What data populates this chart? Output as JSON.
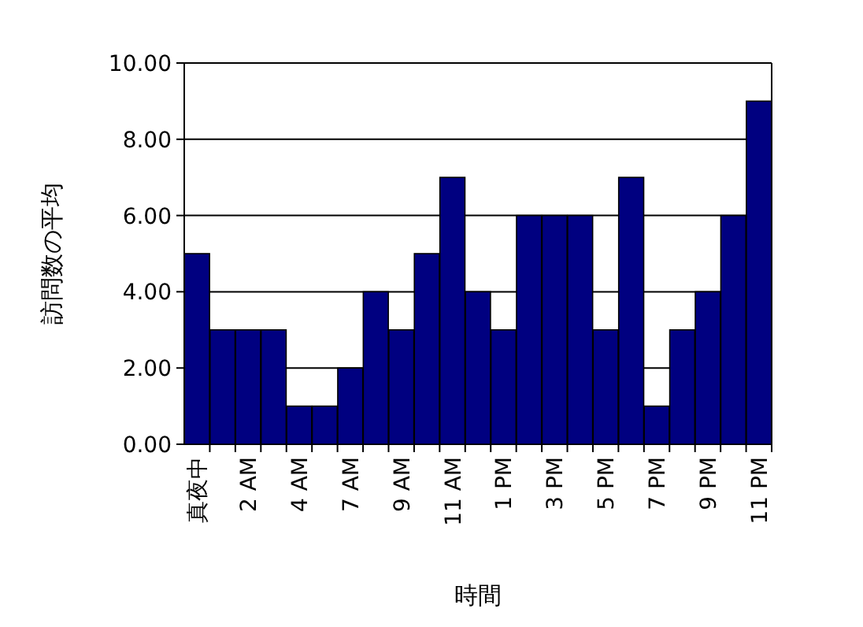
{
  "chart_data": {
    "type": "bar",
    "xlabel": "時間",
    "ylabel": "訪問数の平均",
    "categories": [
      "真夜中",
      null,
      "2 AM",
      null,
      "4 AM",
      null,
      "7 AM",
      null,
      "9 AM",
      null,
      "11 AM",
      null,
      "1 PM",
      null,
      "3 PM",
      null,
      "5 PM",
      null,
      "7 PM",
      null,
      "9 PM",
      null,
      "11 PM"
    ],
    "values": [
      5,
      3,
      3,
      3,
      1,
      1,
      2,
      4,
      3,
      5,
      7,
      4,
      3,
      6,
      6,
      6,
      3,
      7,
      1,
      3,
      4,
      6,
      9
    ],
    "color": "#000080",
    "ylim": [
      0,
      10
    ],
    "yticks": [
      {
        "value": 0,
        "label": "0.00"
      },
      {
        "value": 2,
        "label": "2.00"
      },
      {
        "value": 4,
        "label": "4.00"
      },
      {
        "value": 6,
        "label": "6.00"
      },
      {
        "value": 8,
        "label": "8.00"
      },
      {
        "value": 10,
        "label": "10.00"
      }
    ],
    "grid": "y"
  }
}
